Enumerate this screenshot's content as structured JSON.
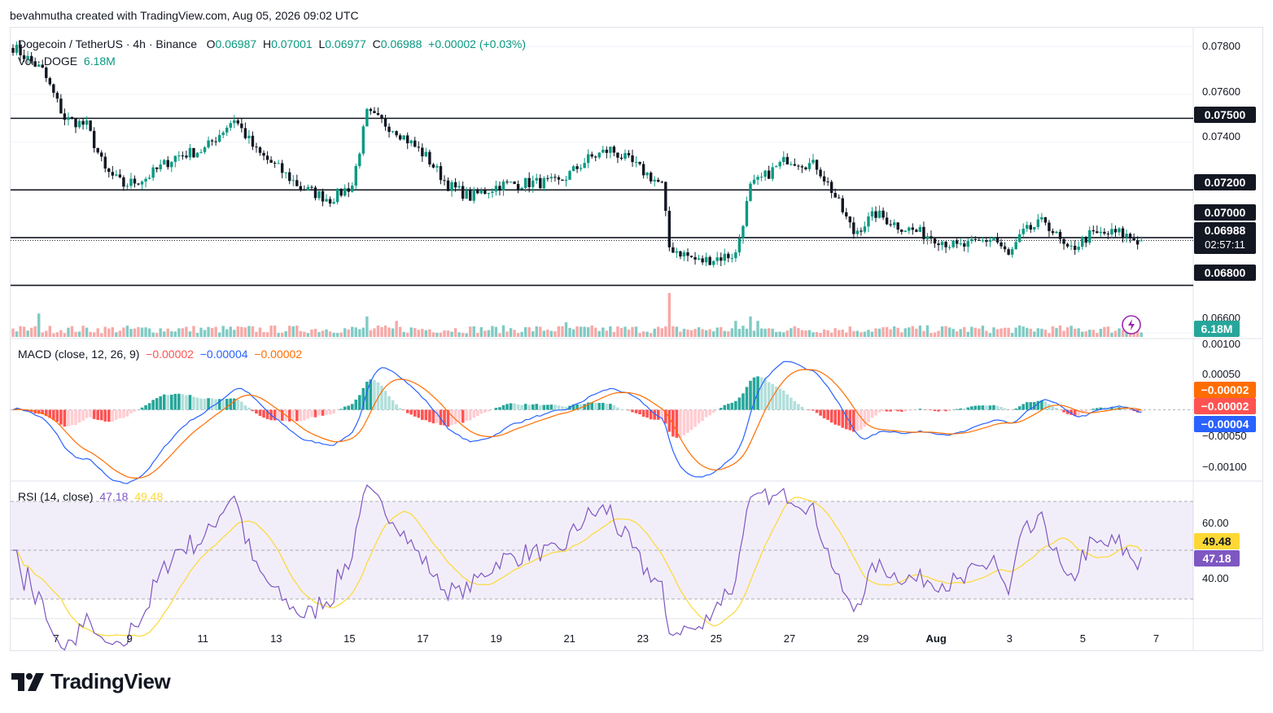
{
  "attribution": "bevahmutha created with TradingView.com, Aug 05, 2026 09:02 UTC",
  "main_legend": {
    "symbol": "Dogecoin / TetherUS · 4h · Binance",
    "o_label": "O",
    "o": "0.06987",
    "h_label": "H",
    "h": "0.07001",
    "l_label": "L",
    "l": "0.06977",
    "c_label": "C",
    "c": "0.06988",
    "change": "+0.00002 (+0.03%)"
  },
  "vol_legend": {
    "label": "Vol · DOGE",
    "value": "6.18M"
  },
  "macd_legend": {
    "label": "MACD (close, 12, 26, 9)",
    "hist": "−0.00002",
    "macd": "−0.00004",
    "signal": "−0.00002"
  },
  "rsi_legend": {
    "label": "RSI (14, close)",
    "rsi": "47.18",
    "ma": "49.48"
  },
  "price_axis": [
    "0.07800",
    "0.07600",
    "0.07400",
    "0.06600"
  ],
  "level_badges": [
    "0.07500",
    "0.07200",
    "0.07000",
    "0.06800"
  ],
  "last_price_badge": {
    "price": "0.06988",
    "countdown": "02:57:11"
  },
  "volume_badge": "6.18M",
  "macd_axis": [
    "0.00100",
    "0.00050",
    "−0.00050",
    "−0.00100"
  ],
  "macd_badges": [
    "−0.00002",
    "−0.00002",
    "−0.00004"
  ],
  "rsi_axis": [
    "60.00",
    "40.00"
  ],
  "rsi_badges": [
    "49.48",
    "47.18"
  ],
  "time_axis": [
    "7",
    "9",
    "11",
    "13",
    "15",
    "17",
    "19",
    "21",
    "23",
    "25",
    "27",
    "29",
    "Aug",
    "3",
    "5",
    "7"
  ],
  "logo_text": "TradingView",
  "colors": {
    "up": "#089981",
    "down": "#131722",
    "vol_up": "#80cbc4",
    "vol_down": "#f7a9a7",
    "macd": "#2962ff",
    "signal": "#ff6d00",
    "rsi": "#7e57c2",
    "rsi_ma": "#fdd835",
    "hist_pos_strong": "#26a69a",
    "hist_pos_weak": "#b2dfdb",
    "hist_neg_strong": "#ff5252",
    "hist_neg_weak": "#ffcdd2"
  },
  "chart_data": {
    "type": "candlestick",
    "title": "Dogecoin / TetherUS · 4h · Binance",
    "ylim": [
      0.0658,
      0.0788
    ],
    "horizontal_levels": [
      0.075,
      0.072,
      0.07,
      0.068
    ],
    "last_price": 0.06988,
    "x_ticks": [
      "7",
      "9",
      "11",
      "13",
      "15",
      "17",
      "19",
      "21",
      "23",
      "25",
      "27",
      "29",
      "Aug",
      "3",
      "5",
      "7"
    ],
    "anchors": [
      [
        0,
        0.078
      ],
      [
        8,
        0.077
      ],
      [
        14,
        0.075
      ],
      [
        20,
        0.0747
      ],
      [
        25,
        0.0728
      ],
      [
        30,
        0.0722
      ],
      [
        36,
        0.0725
      ],
      [
        44,
        0.0734
      ],
      [
        52,
        0.0737
      ],
      [
        60,
        0.075
      ],
      [
        66,
        0.0736
      ],
      [
        72,
        0.0729
      ],
      [
        78,
        0.0721
      ],
      [
        86,
        0.0716
      ],
      [
        92,
        0.0722
      ],
      [
        96,
        0.0752
      ],
      [
        104,
        0.0745
      ],
      [
        112,
        0.0734
      ],
      [
        118,
        0.0722
      ],
      [
        124,
        0.0717
      ],
      [
        132,
        0.0722
      ],
      [
        140,
        0.0723
      ],
      [
        148,
        0.0723
      ],
      [
        156,
        0.0733
      ],
      [
        162,
        0.0737
      ],
      [
        168,
        0.0731
      ],
      [
        176,
        0.0722
      ],
      [
        178,
        0.0696
      ],
      [
        186,
        0.069
      ],
      [
        196,
        0.0693
      ],
      [
        200,
        0.0721
      ],
      [
        210,
        0.0733
      ],
      [
        218,
        0.073
      ],
      [
        222,
        0.072
      ],
      [
        228,
        0.0702
      ],
      [
        234,
        0.071
      ],
      [
        240,
        0.0705
      ],
      [
        250,
        0.07
      ],
      [
        256,
        0.0696
      ],
      [
        260,
        0.0697
      ],
      [
        266,
        0.07
      ],
      [
        270,
        0.0692
      ],
      [
        274,
        0.0702
      ],
      [
        280,
        0.0707
      ],
      [
        286,
        0.0694
      ],
      [
        292,
        0.0701
      ],
      [
        300,
        0.0702
      ],
      [
        306,
        0.0698
      ]
    ],
    "volume_unit": "M DOGE",
    "last_volume": 6.18,
    "volume_spikes": {
      "7": 3.2,
      "96": 2.8,
      "104": 2.2,
      "150": 2.0,
      "178": 6.0,
      "196": 2.2,
      "200": 2.8,
      "202": 2.2
    },
    "macd": {
      "last_hist": -2e-05,
      "last_macd": -4e-05,
      "last_signal": -2e-05,
      "ylim": [
        -0.0011,
        0.0011
      ]
    },
    "rsi": {
      "last": 47.18,
      "last_ma": 49.48,
      "band": [
        30,
        70
      ],
      "ylim": [
        22,
        78
      ]
    },
    "num_bars": 307
  }
}
